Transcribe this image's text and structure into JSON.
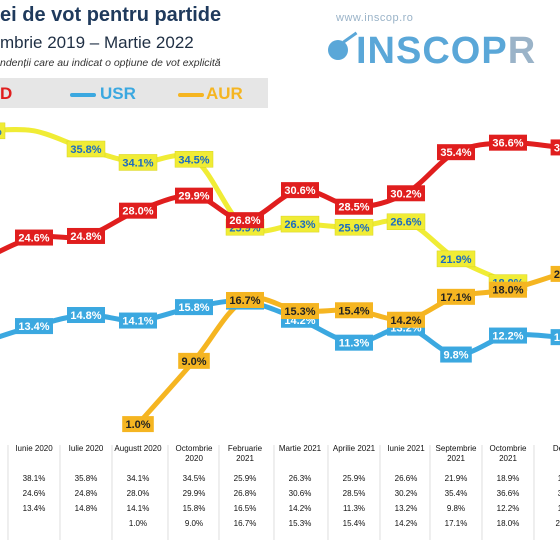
{
  "title": "ei de vot pentru partide",
  "subtitle": "mbrie 2019 – Martie 2022",
  "note": "ndenții care au indicat o opțiune de vot explicită",
  "brand": {
    "url": "www.inscop.ro",
    "name": "INSCOP",
    "name_tail": "R"
  },
  "legend": [
    {
      "label": "D",
      "color": "#e01e1e"
    },
    {
      "label": "USR",
      "color": "#3ba8e0"
    },
    {
      "label": "AUR",
      "color": "#f5b521"
    }
  ],
  "chart_data": {
    "type": "line",
    "categories": [
      "",
      "Iunie 2020",
      "Iulie 2020",
      "Augustt 2020",
      "Octombrie 2020",
      "Februarie 2021",
      "Martie 2021",
      "Aprilie 2021",
      "Iunie 2021",
      "Septembrie 2021",
      "Octombrie 2021",
      "Dec"
    ],
    "series": [
      {
        "name": "",
        "color": "#f0ec35",
        "label_bg": "#f0ec35",
        "label_fg": "#1a6bc2",
        "values": [
          38.1,
          38.1,
          35.8,
          34.1,
          34.5,
          25.9,
          26.3,
          25.9,
          26.6,
          21.9,
          18.9,
          null
        ],
        "labels": [
          "38.1%",
          "",
          "35.8%",
          "34.1%",
          "34.5%",
          "25.9%",
          "26.3%",
          "25.9%",
          "26.6%",
          "21.9%",
          "18.9%",
          ""
        ]
      },
      {
        "name": "D",
        "color": "#e01e1e",
        "label_bg": "#e01e1e",
        "label_fg": "#ffffff",
        "values": [
          22.0,
          24.6,
          24.8,
          28.0,
          29.9,
          26.8,
          30.6,
          28.5,
          30.2,
          35.4,
          36.6,
          36.0
        ],
        "labels": [
          "",
          "24.6%",
          "24.8%",
          "28.0%",
          "29.9%",
          "26.8%",
          "30.6%",
          "28.5%",
          "30.2%",
          "35.4%",
          "36.6%",
          "36"
        ]
      },
      {
        "name": "USR",
        "color": "#3ba8e0",
        "label_bg": "#3ba8e0",
        "label_fg": "#ffffff",
        "values": [
          11.5,
          13.4,
          14.8,
          14.1,
          15.8,
          16.5,
          14.2,
          11.3,
          13.2,
          9.8,
          12.2,
          12.0
        ],
        "labels": [
          "",
          "13.4%",
          "14.8%",
          "14.1%",
          "15.8%",
          "16.5%",
          "14.2%",
          "11.3%",
          "13.2%",
          "9.8%",
          "12.2%",
          "12"
        ]
      },
      {
        "name": "AUR",
        "color": "#f5b521",
        "label_bg": "#f5b521",
        "label_fg": "#222222",
        "values": [
          null,
          null,
          null,
          1.0,
          9.0,
          16.7,
          15.3,
          15.4,
          14.2,
          17.1,
          18.0,
          20.0
        ],
        "labels": [
          "",
          "",
          "",
          "1.0%",
          "9.0%",
          "16.7%",
          "15.3%",
          "15.4%",
          "14.2%",
          "17.1%",
          "18.0%",
          "20"
        ]
      }
    ],
    "extra_labels": [
      "18.9%"
    ],
    "table": {
      "rows": [
        [
          "",
          "38.1%",
          "35.8%",
          "34.1%",
          "34.5%",
          "25.9%",
          "26.3%",
          "25.9%",
          "26.6%",
          "21.9%",
          "18.9%",
          "1"
        ],
        [
          "",
          "24.6%",
          "24.8%",
          "28.0%",
          "29.9%",
          "26.8%",
          "30.6%",
          "28.5%",
          "30.2%",
          "35.4%",
          "36.6%",
          "3"
        ],
        [
          "",
          "13.4%",
          "14.8%",
          "14.1%",
          "15.8%",
          "16.5%",
          "14.2%",
          "11.3%",
          "13.2%",
          "9.8%",
          "12.2%",
          "1"
        ],
        [
          "",
          "",
          "",
          "1.0%",
          "9.0%",
          "16.7%",
          "15.3%",
          "15.4%",
          "14.2%",
          "17.1%",
          "18.0%",
          "20"
        ]
      ]
    },
    "ylim": [
      0,
      42
    ],
    "grid": false
  }
}
